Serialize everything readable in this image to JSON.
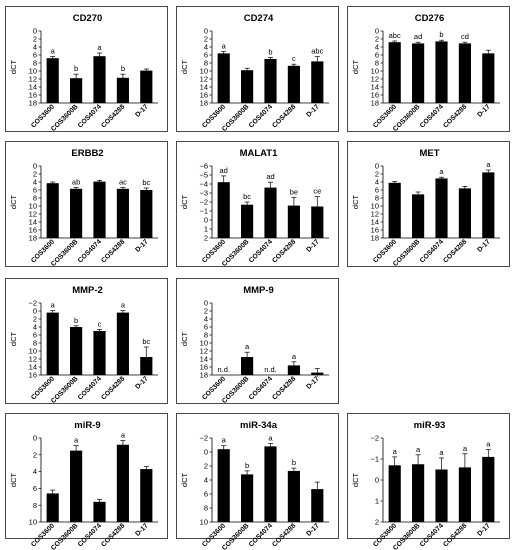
{
  "colors": {
    "bar": "#000000",
    "axis": "#000000",
    "border": "#4a4a4a"
  },
  "chart_data": [
    {
      "type": "bar",
      "title": "CD270",
      "ylabel": "dCT",
      "ylim": [
        18,
        0
      ],
      "yticks": [
        0,
        2,
        4,
        6,
        8,
        10,
        12,
        14,
        16,
        18
      ],
      "tick_labels": [
        "0",
        "2",
        "4",
        "6",
        "8",
        "10",
        "12",
        "14",
        "16",
        "18"
      ],
      "categories": [
        "COS3600",
        "COS3600B",
        "COS4074",
        "COS4288",
        "D-17"
      ],
      "values": [
        6.8,
        11.8,
        6.3,
        11.7,
        9.9
      ],
      "errors": [
        0.4,
        1.0,
        0.8,
        0.9,
        0.4
      ],
      "labels": [
        "a",
        "b",
        "a",
        "b",
        ""
      ],
      "nd": [
        false,
        false,
        false,
        false,
        false
      ]
    },
    {
      "type": "bar",
      "title": "CD274",
      "ylabel": "dCT",
      "ylim": [
        18,
        0
      ],
      "yticks": [
        0,
        2,
        4,
        6,
        8,
        10,
        12,
        14,
        16,
        18
      ],
      "tick_labels": [
        "0",
        "2",
        "4",
        "6",
        "8",
        "10",
        "12",
        "14",
        "16",
        "18"
      ],
      "categories": [
        "COS3600",
        "COS3600B",
        "COS4074",
        "COS4288",
        "D-17"
      ],
      "values": [
        5.6,
        9.8,
        7.0,
        8.7,
        7.6
      ],
      "errors": [
        0.5,
        0.5,
        0.4,
        0.4,
        1.2
      ],
      "labels": [
        "a",
        "",
        "b",
        "c",
        "abc"
      ],
      "nd": [
        false,
        false,
        false,
        false,
        false
      ]
    },
    {
      "type": "bar",
      "title": "CD276",
      "ylabel": "dCT",
      "ylim": [
        18,
        0
      ],
      "yticks": [
        0,
        2,
        4,
        6,
        8,
        10,
        12,
        14,
        16,
        18
      ],
      "tick_labels": [
        "0",
        "2",
        "4",
        "6",
        "8",
        "10",
        "12",
        "14",
        "16",
        "18"
      ],
      "categories": [
        "COS3600",
        "COS3600B",
        "COS4074",
        "COS4288",
        "D-17"
      ],
      "values": [
        2.8,
        3.1,
        2.6,
        3.1,
        5.6
      ],
      "errors": [
        0.3,
        0.3,
        0.3,
        0.3,
        0.8
      ],
      "labels": [
        "abc",
        "ad",
        "b",
        "cd",
        ""
      ],
      "nd": [
        false,
        false,
        false,
        false,
        false
      ]
    },
    {
      "type": "bar",
      "title": "ERBB2",
      "ylabel": "dCT",
      "ylim": [
        18,
        0
      ],
      "yticks": [
        0,
        2,
        4,
        6,
        8,
        10,
        12,
        14,
        16,
        18
      ],
      "tick_labels": [
        "0",
        "2",
        "4",
        "6",
        "8",
        "10",
        "12",
        "14",
        "16",
        "18"
      ],
      "categories": [
        "COS3600",
        "COS3600B",
        "COS4074",
        "COS4288",
        "D-17"
      ],
      "values": [
        4.3,
        5.7,
        3.9,
        5.7,
        6.0
      ],
      "errors": [
        0.3,
        0.3,
        0.3,
        0.3,
        0.5
      ],
      "labels": [
        "",
        "ab",
        "",
        "ac",
        "bc"
      ],
      "nd": [
        false,
        false,
        false,
        false,
        false
      ]
    },
    {
      "type": "bar",
      "title": "MALAT1",
      "ylabel": "dCT",
      "ylim": [
        2,
        -6
      ],
      "yticks": [
        -6,
        -5,
        -4,
        -3,
        -2,
        -1,
        0,
        1,
        2
      ],
      "tick_labels": [
        "−6",
        "−5",
        "−4",
        "−3",
        "−2",
        "−1",
        "0",
        "1",
        "2"
      ],
      "categories": [
        "COS3600",
        "COS3600B",
        "COS4074",
        "COS4288",
        "D-17"
      ],
      "values": [
        -4.2,
        -1.7,
        -3.6,
        -1.6,
        -1.5
      ],
      "errors": [
        0.7,
        0.3,
        0.6,
        0.9,
        1.1
      ],
      "labels": [
        "ad",
        "bc",
        "ad",
        "be",
        "ce"
      ],
      "nd": [
        false,
        false,
        false,
        false,
        false
      ]
    },
    {
      "type": "bar",
      "title": "MET",
      "ylabel": "dCT",
      "ylim": [
        18,
        0
      ],
      "yticks": [
        0,
        2,
        4,
        6,
        8,
        10,
        12,
        14,
        16,
        18
      ],
      "tick_labels": [
        "0",
        "2",
        "4",
        "6",
        "8",
        "10",
        "12",
        "14",
        "16",
        "18"
      ],
      "categories": [
        "COS3600",
        "COS3600B",
        "COS4074",
        "COS4288",
        "D-17"
      ],
      "values": [
        4.2,
        7.1,
        3.1,
        5.6,
        1.6
      ],
      "errors": [
        0.3,
        0.6,
        0.3,
        0.5,
        0.6
      ],
      "labels": [
        "",
        "",
        "a",
        "",
        "a"
      ],
      "nd": [
        false,
        false,
        false,
        false,
        false
      ]
    },
    {
      "type": "bar",
      "title": "MMP-2",
      "ylabel": "dCT",
      "ylim": [
        16,
        -2
      ],
      "yticks": [
        -2,
        0,
        2,
        4,
        6,
        8,
        10,
        12,
        14,
        16
      ],
      "tick_labels": [
        "−2",
        "0",
        "2",
        "4",
        "6",
        "8",
        "10",
        "12",
        "14",
        "16"
      ],
      "categories": [
        "COS3600",
        "COS3600B",
        "COS4074",
        "COS4288",
        "D-17"
      ],
      "values": [
        0.4,
        4.0,
        5.0,
        0.4,
        11.5
      ],
      "errors": [
        0.5,
        0.3,
        0.4,
        0.5,
        2.5
      ],
      "labels": [
        "a",
        "b",
        "c",
        "a",
        "bc"
      ],
      "nd": [
        false,
        false,
        false,
        false,
        false
      ]
    },
    {
      "type": "bar",
      "title": "MMP-9",
      "ylabel": "dCT",
      "ylim": [
        18,
        0
      ],
      "yticks": [
        0,
        2,
        4,
        6,
        8,
        10,
        12,
        14,
        16,
        18
      ],
      "tick_labels": [
        "0",
        "2",
        "4",
        "6",
        "8",
        "10",
        "12",
        "14",
        "16",
        "18"
      ],
      "categories": [
        "COS3600",
        "COS3600B",
        "COS4074",
        "COS4288",
        "D-17"
      ],
      "values": [
        null,
        13.5,
        null,
        15.6,
        17.4
      ],
      "errors": [
        0,
        1.2,
        0,
        0.9,
        1.0
      ],
      "labels": [
        "n.d.",
        "a",
        "n.d.",
        "a",
        ""
      ],
      "nd": [
        true,
        false,
        true,
        false,
        false
      ]
    },
    {
      "type": "bar",
      "title": "miR-9",
      "ylabel": "dCT",
      "ylim": [
        10,
        0
      ],
      "yticks": [
        0,
        2,
        4,
        6,
        8,
        10
      ],
      "tick_labels": [
        "0",
        "2",
        "4",
        "6",
        "8",
        "10"
      ],
      "categories": [
        "COS3600",
        "COS3600B",
        "COS4074",
        "COS4288",
        "D-17"
      ],
      "values": [
        6.6,
        1.5,
        7.6,
        0.8,
        3.7
      ],
      "errors": [
        0.4,
        0.6,
        0.3,
        0.5,
        0.3
      ],
      "labels": [
        "",
        "a",
        "",
        "a",
        ""
      ],
      "nd": [
        false,
        false,
        false,
        false,
        false
      ]
    },
    {
      "type": "bar",
      "title": "miR-34a",
      "ylabel": "dCT",
      "ylim": [
        10,
        -2
      ],
      "yticks": [
        -2,
        0,
        2,
        4,
        6,
        8,
        10
      ],
      "tick_labels": [
        "−2",
        "0",
        "2",
        "4",
        "6",
        "8",
        "10"
      ],
      "categories": [
        "COS3600",
        "COS3600B",
        "COS4074",
        "COS4288",
        "D-17"
      ],
      "values": [
        -0.4,
        3.2,
        -0.8,
        2.7,
        5.3
      ],
      "errors": [
        0.5,
        0.5,
        0.4,
        0.4,
        1.0
      ],
      "labels": [
        "a",
        "b",
        "a",
        "b",
        ""
      ],
      "nd": [
        false,
        false,
        false,
        false,
        false
      ]
    },
    {
      "type": "bar",
      "title": "miR-93",
      "ylabel": "dCT",
      "ylim": [
        2,
        -2
      ],
      "yticks": [
        -2,
        -1,
        0,
        1,
        2
      ],
      "tick_labels": [
        "−2",
        "−1",
        "0",
        "1",
        "2"
      ],
      "categories": [
        "COS3600",
        "COS3600B",
        "COS4074",
        "COS4288",
        "D-17"
      ],
      "values": [
        -0.7,
        -0.75,
        -0.5,
        -0.6,
        -1.1
      ],
      "errors": [
        0.4,
        0.45,
        0.55,
        0.65,
        0.35
      ],
      "labels": [
        "a",
        "a",
        "a",
        "a",
        "a"
      ],
      "nd": [
        false,
        false,
        false,
        false,
        false
      ]
    }
  ]
}
